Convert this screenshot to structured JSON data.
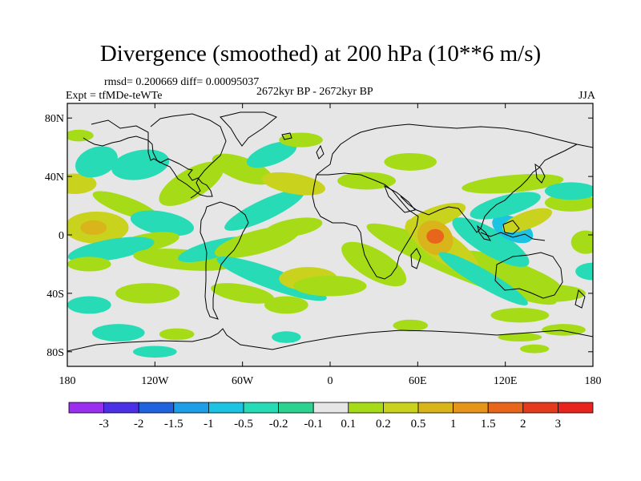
{
  "chart_data": {
    "type": "heatmap",
    "title": "Divergence (smoothed) at 200 hPa (10**6 m/s)",
    "stats_text": "rmsd= 0.200669 diff= 0.00095037",
    "experiment_text": "Expt = tfMDe-teWTe",
    "period_text": "2672kyr BP - 2672kyr BP",
    "season": "JJA",
    "xlim": [
      -180,
      180
    ],
    "ylim": [
      -90,
      90
    ],
    "x_ticks": [
      {
        "value": -180,
        "label": "180"
      },
      {
        "value": -120,
        "label": "120W"
      },
      {
        "value": -60,
        "label": "60W"
      },
      {
        "value": 0,
        "label": "0"
      },
      {
        "value": 60,
        "label": "60E"
      },
      {
        "value": 120,
        "label": "120E"
      },
      {
        "value": 180,
        "label": "180"
      }
    ],
    "y_ticks": [
      {
        "value": 80,
        "label": "80N"
      },
      {
        "value": 40,
        "label": "40N"
      },
      {
        "value": 0,
        "label": "0"
      },
      {
        "value": -40,
        "label": "40S"
      },
      {
        "value": -80,
        "label": "80S"
      }
    ],
    "colorbar": {
      "boundaries": [
        "-3",
        "-2",
        "-1.5",
        "-1",
        "-0.5",
        "-0.2",
        "-0.1",
        "0.1",
        "0.2",
        "0.5",
        "1",
        "1.5",
        "2",
        "3"
      ],
      "colors": [
        "#9a2ff0",
        "#4b30e6",
        "#1f63df",
        "#1d9ee6",
        "#1cc3e2",
        "#26dbb6",
        "#2cd290",
        "#e6e6e6",
        "#a6dc17",
        "#c9d21c",
        "#dab41b",
        "#e6941a",
        "#e8661c",
        "#e33b1c",
        "#e8241e"
      ]
    },
    "features": [
      {
        "value": 0.15,
        "center": [
          90,
          -20
        ],
        "size": [
          70,
          10
        ],
        "tilt": 22
      },
      {
        "value": 0.15,
        "center": [
          125,
          -24
        ],
        "size": [
          35,
          6
        ],
        "tilt": 20
      },
      {
        "value": 0.3,
        "center": [
          77,
          -8
        ],
        "size": [
          30,
          10
        ],
        "tilt": 35
      },
      {
        "value": 0.3,
        "center": [
          72,
          12
        ],
        "size": [
          22,
          7
        ],
        "tilt": -20
      },
      {
        "value": 0.7,
        "center": [
          72,
          -2
        ],
        "size": [
          13,
          11
        ],
        "tilt": 40
      },
      {
        "value": 1.6,
        "center": [
          72,
          -1
        ],
        "size": [
          6,
          5
        ],
        "tilt": 0
      },
      {
        "value": -0.3,
        "center": [
          110,
          -5
        ],
        "size": [
          30,
          9
        ],
        "tilt": 30
      },
      {
        "value": -0.7,
        "center": [
          125,
          4
        ],
        "size": [
          15,
          8
        ],
        "tilt": 25
      },
      {
        "value": -0.3,
        "center": [
          120,
          20
        ],
        "size": [
          25,
          7
        ],
        "tilt": -15
      },
      {
        "value": 0.15,
        "center": [
          125,
          35
        ],
        "size": [
          35,
          6
        ],
        "tilt": -5
      },
      {
        "value": 0.3,
        "center": [
          135,
          10
        ],
        "size": [
          18,
          6
        ],
        "tilt": -20
      },
      {
        "value": 0.15,
        "center": [
          165,
          22
        ],
        "size": [
          18,
          6
        ],
        "tilt": 0
      },
      {
        "value": -0.3,
        "center": [
          165,
          30
        ],
        "size": [
          18,
          6
        ],
        "tilt": 0
      },
      {
        "value": 0.3,
        "center": [
          -160,
          5
        ],
        "size": [
          22,
          11
        ],
        "tilt": 0
      },
      {
        "value": 0.7,
        "center": [
          -162,
          5
        ],
        "size": [
          9,
          5
        ],
        "tilt": 0
      },
      {
        "value": 0.15,
        "center": [
          -140,
          20
        ],
        "size": [
          24,
          6
        ],
        "tilt": 20
      },
      {
        "value": -0.3,
        "center": [
          -115,
          8
        ],
        "size": [
          22,
          8
        ],
        "tilt": 10
      },
      {
        "value": 0.15,
        "center": [
          -125,
          -5
        ],
        "size": [
          22,
          6
        ],
        "tilt": -10
      },
      {
        "value": -0.3,
        "center": [
          -150,
          -10
        ],
        "size": [
          30,
          7
        ],
        "tilt": -10
      },
      {
        "value": 0.15,
        "center": [
          -100,
          -17
        ],
        "size": [
          35,
          7
        ],
        "tilt": 5
      },
      {
        "value": -0.3,
        "center": [
          -80,
          -10
        ],
        "size": [
          25,
          6
        ],
        "tilt": -15
      },
      {
        "value": 0.15,
        "center": [
          -125,
          -40
        ],
        "size": [
          22,
          7
        ],
        "tilt": 0
      },
      {
        "value": -0.3,
        "center": [
          -165,
          -48
        ],
        "size": [
          15,
          6
        ],
        "tilt": 0
      },
      {
        "value": 0.15,
        "center": [
          -50,
          -5
        ],
        "size": [
          30,
          8
        ],
        "tilt": -15
      },
      {
        "value": -0.3,
        "center": [
          -45,
          17
        ],
        "size": [
          30,
          7
        ],
        "tilt": -25
      },
      {
        "value": 0.15,
        "center": [
          -25,
          5
        ],
        "size": [
          20,
          6
        ],
        "tilt": -10
      },
      {
        "value": -0.3,
        "center": [
          -40,
          -30
        ],
        "size": [
          40,
          7
        ],
        "tilt": 20
      },
      {
        "value": 0.15,
        "center": [
          -60,
          -40
        ],
        "size": [
          22,
          6
        ],
        "tilt": 10
      },
      {
        "value": 0.15,
        "center": [
          -95,
          35
        ],
        "size": [
          25,
          10
        ],
        "tilt": -30
      },
      {
        "value": -0.3,
        "center": [
          -130,
          48
        ],
        "size": [
          20,
          10
        ],
        "tilt": -10
      },
      {
        "value": 0.15,
        "center": [
          -60,
          45
        ],
        "size": [
          22,
          8
        ],
        "tilt": 20
      },
      {
        "value": -0.3,
        "center": [
          -40,
          55
        ],
        "size": [
          18,
          7
        ],
        "tilt": -20
      },
      {
        "value": 0.3,
        "center": [
          -175,
          35
        ],
        "size": [
          15,
          7
        ],
        "tilt": 0
      },
      {
        "value": -0.3,
        "center": [
          -160,
          50
        ],
        "size": [
          15,
          10
        ],
        "tilt": -20
      },
      {
        "value": 0.15,
        "center": [
          55,
          50
        ],
        "size": [
          18,
          6
        ],
        "tilt": 0
      },
      {
        "value": 0.15,
        "center": [
          25,
          37
        ],
        "size": [
          20,
          6
        ],
        "tilt": 0
      },
      {
        "value": 0.3,
        "center": [
          -25,
          35
        ],
        "size": [
          22,
          7
        ],
        "tilt": 10
      },
      {
        "value": 0.15,
        "center": [
          -20,
          65
        ],
        "size": [
          15,
          5
        ],
        "tilt": 0
      },
      {
        "value": 0.15,
        "center": [
          -172,
          68
        ],
        "size": [
          10,
          4
        ],
        "tilt": 0
      },
      {
        "value": 0.3,
        "center": [
          -15,
          -30
        ],
        "size": [
          20,
          8
        ],
        "tilt": 0
      },
      {
        "value": 0.15,
        "center": [
          0,
          -35
        ],
        "size": [
          25,
          7
        ],
        "tilt": 0
      },
      {
        "value": 0.15,
        "center": [
          30,
          -20
        ],
        "size": [
          25,
          10
        ],
        "tilt": 30
      },
      {
        "value": 0.15,
        "center": [
          -30,
          -48
        ],
        "size": [
          15,
          6
        ],
        "tilt": 0
      },
      {
        "value": -0.3,
        "center": [
          -145,
          -67
        ],
        "size": [
          18,
          6
        ],
        "tilt": 0
      },
      {
        "value": -0.3,
        "center": [
          -120,
          -80
        ],
        "size": [
          15,
          4
        ],
        "tilt": 0
      },
      {
        "value": 0.15,
        "center": [
          -105,
          -68
        ],
        "size": [
          12,
          4
        ],
        "tilt": 0
      },
      {
        "value": 0.15,
        "center": [
          150,
          -40
        ],
        "size": [
          25,
          6
        ],
        "tilt": 0
      },
      {
        "value": -0.3,
        "center": [
          180,
          -25
        ],
        "size": [
          12,
          6
        ],
        "tilt": 0
      },
      {
        "value": 0.15,
        "center": [
          130,
          -55
        ],
        "size": [
          20,
          5
        ],
        "tilt": 0
      },
      {
        "value": 0.15,
        "center": [
          55,
          -62
        ],
        "size": [
          12,
          4
        ],
        "tilt": 0
      },
      {
        "value": 0.15,
        "center": [
          160,
          -65
        ],
        "size": [
          15,
          4
        ],
        "tilt": 0
      },
      {
        "value": 0.15,
        "center": [
          140,
          -78
        ],
        "size": [
          10,
          3
        ],
        "tilt": 0
      },
      {
        "value": -0.3,
        "center": [
          105,
          -30
        ],
        "size": [
          35,
          6
        ],
        "tilt": 30
      },
      {
        "value": 0.15,
        "center": [
          -165,
          -20
        ],
        "size": [
          15,
          5
        ],
        "tilt": 0
      },
      {
        "value": 0.15,
        "center": [
          130,
          -70
        ],
        "size": [
          15,
          3
        ],
        "tilt": 0
      },
      {
        "value": -0.3,
        "center": [
          -30,
          -70
        ],
        "size": [
          10,
          4
        ],
        "tilt": 0
      },
      {
        "value": 0.15,
        "center": [
          175,
          -5
        ],
        "size": [
          10,
          8
        ],
        "tilt": 0
      }
    ]
  }
}
